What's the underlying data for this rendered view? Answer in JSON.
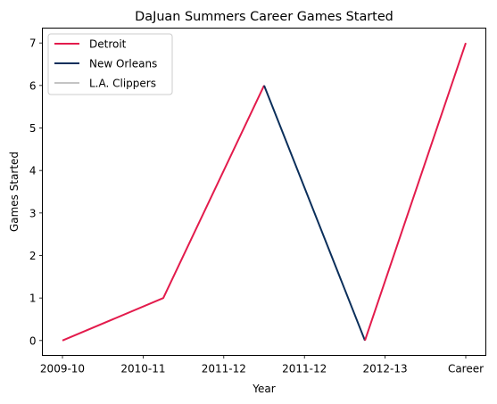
{
  "chart_data": {
    "type": "line",
    "title": "DaJuan Summers Career Games Started",
    "xlabel": "Year",
    "ylabel": "Games Started",
    "categories": [
      "2009-10",
      "2010-11",
      "2011-12",
      "2011-12",
      "2012-13",
      "Career"
    ],
    "ylim": [
      -0.35,
      7.35
    ],
    "yticks": [
      0,
      1,
      2,
      3,
      4,
      5,
      6,
      7
    ],
    "grid": false,
    "legend_position": "top-left",
    "series": [
      {
        "name": "Detroit",
        "color": "#e31b4c",
        "points": [
          {
            "x": 0,
            "y": 0
          },
          {
            "x": 1.25,
            "y": 1
          },
          {
            "x": 2.5,
            "y": 6
          }
        ]
      },
      {
        "name": "New Orleans",
        "color": "#0b2f5b",
        "points": [
          {
            "x": 2.5,
            "y": 6
          },
          {
            "x": 3.75,
            "y": 0
          }
        ]
      },
      {
        "name": "L.A. Clippers",
        "color": "#c4c4c4",
        "points": []
      },
      {
        "name": "",
        "color": "#e31b4c",
        "points": [
          {
            "x": 3.75,
            "y": 0
          },
          {
            "x": 5,
            "y": 7
          }
        ]
      }
    ]
  }
}
